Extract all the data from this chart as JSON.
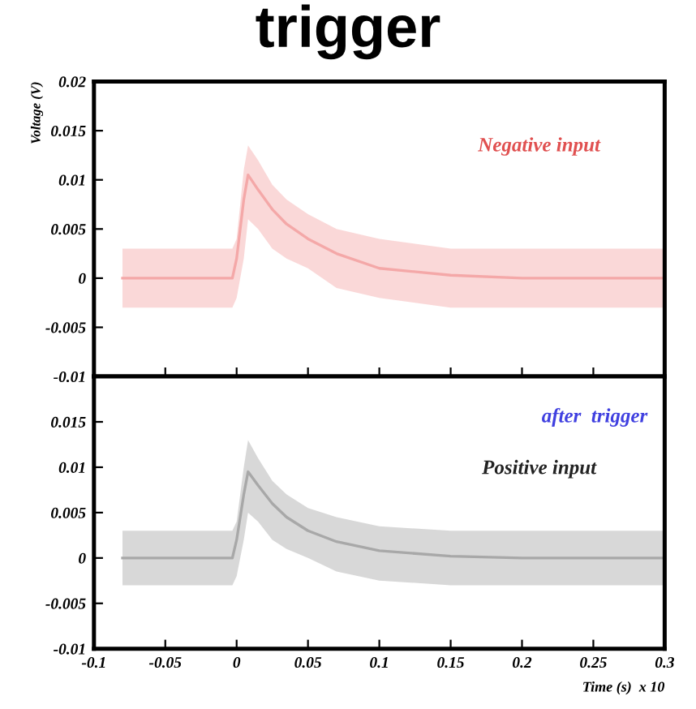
{
  "chart_data": [
    {
      "type": "line",
      "title": "trigger",
      "ylabel": "Voltage (V)",
      "x": [
        -0.08,
        -0.04,
        -0.003,
        0.0,
        0.005,
        0.008,
        0.015,
        0.025,
        0.035,
        0.05,
        0.07,
        0.1,
        0.15,
        0.2,
        0.25,
        0.3
      ],
      "series": [
        {
          "name": "Negative input",
          "color": "#f4a8a8",
          "values": [
            0,
            0,
            0,
            0.002,
            0.008,
            0.0105,
            0.009,
            0.007,
            0.0055,
            0.004,
            0.0025,
            0.001,
            0.0003,
            0,
            0,
            0
          ],
          "lower": [
            -0.003,
            -0.003,
            -0.003,
            -0.002,
            0.002,
            0.006,
            0.005,
            0.003,
            0.002,
            0.001,
            -0.001,
            -0.002,
            -0.003,
            -0.003,
            -0.003,
            -0.003
          ],
          "upper": [
            0.003,
            0.003,
            0.003,
            0.004,
            0.011,
            0.0135,
            0.012,
            0.0095,
            0.008,
            0.0065,
            0.005,
            0.004,
            0.003,
            0.003,
            0.003,
            0.003
          ]
        }
      ],
      "xlim": [
        -0.1,
        0.3
      ],
      "xticks": [
        -0.1,
        -0.05,
        0,
        0.05,
        0.1,
        0.15,
        0.2,
        0.25,
        0.3
      ],
      "ylim": [
        -0.01,
        0.02
      ],
      "yticks": [
        -0.01,
        -0.005,
        0,
        0.005,
        0.01,
        0.015,
        0.02
      ],
      "tick_labels": "y",
      "grid": false,
      "legend": false
    },
    {
      "type": "line",
      "xlabel": "Time (s)  x 10",
      "x": [
        -0.08,
        -0.04,
        -0.003,
        0.0,
        0.005,
        0.008,
        0.015,
        0.025,
        0.035,
        0.05,
        0.07,
        0.1,
        0.15,
        0.2,
        0.25,
        0.3
      ],
      "series": [
        {
          "name": "Positive input",
          "color": "#a8a8a8",
          "values": [
            0,
            0,
            0,
            0.002,
            0.007,
            0.0095,
            0.008,
            0.006,
            0.0045,
            0.003,
            0.0018,
            0.0008,
            0.0002,
            0,
            0,
            0
          ],
          "lower": [
            -0.003,
            -0.003,
            -0.003,
            -0.002,
            0.002,
            0.005,
            0.004,
            0.002,
            0.001,
            0.0,
            -0.0015,
            -0.0025,
            -0.003,
            -0.003,
            -0.003,
            -0.003
          ],
          "upper": [
            0.003,
            0.003,
            0.003,
            0.004,
            0.01,
            0.013,
            0.011,
            0.0085,
            0.007,
            0.0055,
            0.0045,
            0.0035,
            0.003,
            0.003,
            0.003,
            0.003
          ]
        }
      ],
      "annotations": [
        "after  trigger"
      ],
      "xlim": [
        -0.1,
        0.3
      ],
      "xticks": [
        -0.1,
        -0.05,
        0,
        0.05,
        0.1,
        0.15,
        0.2,
        0.25,
        0.3
      ],
      "ylim": [
        -0.01,
        0.02
      ],
      "yticks": [
        -0.01,
        -0.005,
        0,
        0.005,
        0.01,
        0.015,
        {
          "value": 0.02,
          "label": null
        }
      ],
      "grid": false,
      "legend": false
    }
  ]
}
